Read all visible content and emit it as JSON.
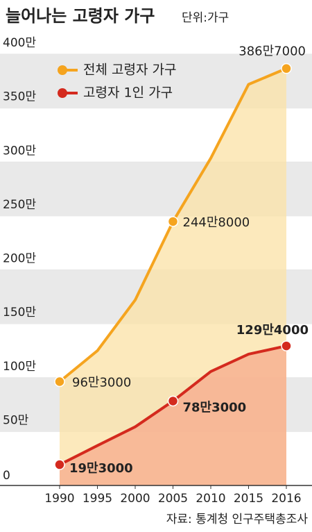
{
  "chart_data": {
    "type": "line",
    "title": "늘어나는 고령자 가구",
    "subtitle": "단위:가구",
    "source": "자료: 통계청 인구주택총조사",
    "categories": [
      "1990",
      "1995",
      "2000",
      "2005",
      "2010",
      "2015",
      "2016"
    ],
    "series": [
      {
        "name": "전체 고령자 가구",
        "color": "#f5a41f",
        "values": [
          963000,
          1250000,
          1720000,
          2448000,
          3035000,
          3720000,
          3867000
        ],
        "value_labels": [
          "96만3000",
          null,
          null,
          "244만8000",
          null,
          null,
          "386만7000"
        ]
      },
      {
        "name": "고령자 1인 가구",
        "color": "#d42a1e",
        "values": [
          193000,
          370000,
          544000,
          783000,
          1057000,
          1218000,
          1294000
        ],
        "value_labels": [
          "19만3000",
          null,
          null,
          "78만3000",
          null,
          null,
          "129만4000"
        ]
      }
    ],
    "ylim": [
      0,
      4000000
    ],
    "yticks": [
      0,
      {
        "value": 500000,
        "label": "50만"
      },
      {
        "value": 1000000,
        "label": "100만"
      },
      {
        "value": 1500000,
        "label": "150만"
      },
      {
        "value": 2000000,
        "label": "200만"
      },
      {
        "value": 2500000,
        "label": "250만"
      },
      {
        "value": 3000000,
        "label": "300만"
      },
      {
        "value": 3500000,
        "label": "350만"
      },
      {
        "value": 4000000,
        "label": "400만"
      }
    ],
    "grid": true
  }
}
